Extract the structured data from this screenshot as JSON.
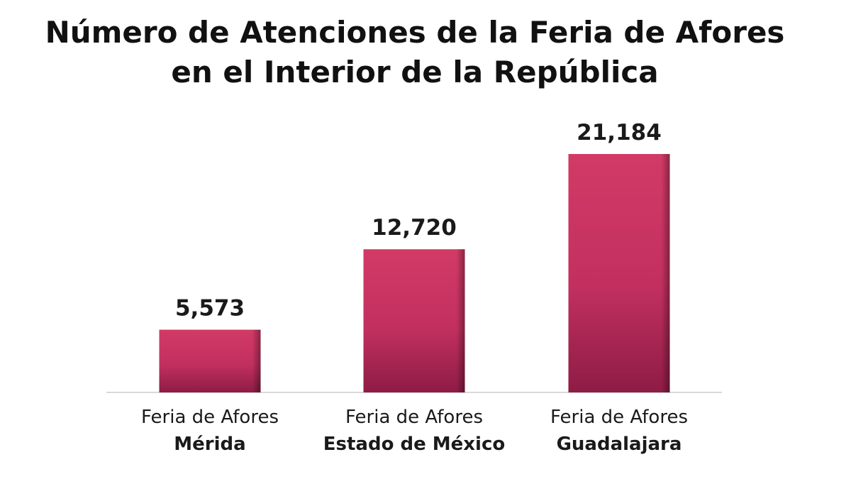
{
  "chart_data": {
    "type": "bar",
    "title_lines": [
      "Número de Atenciones de la Feria de Afores",
      "en el Interior de la República"
    ],
    "categories": [
      {
        "line1": "Feria de Afores",
        "line2": "Mérida"
      },
      {
        "line1": "Feria de Afores",
        "line2": "Estado de México"
      },
      {
        "line1": "Feria de Afores",
        "line2": "Guadalajara"
      }
    ],
    "values": [
      5573,
      12720,
      21184
    ],
    "value_labels": [
      "5,573",
      "12,720",
      "21,184"
    ],
    "xlabel": "",
    "ylabel": "",
    "ylim": [
      0,
      21184
    ],
    "grid": false,
    "legend": "none",
    "colors": {
      "bar_top": "#d23a66",
      "bar_bottom": "#8e1c45",
      "bar_edge": "#5e0f2c",
      "baseline": "#d9d9d9"
    }
  }
}
